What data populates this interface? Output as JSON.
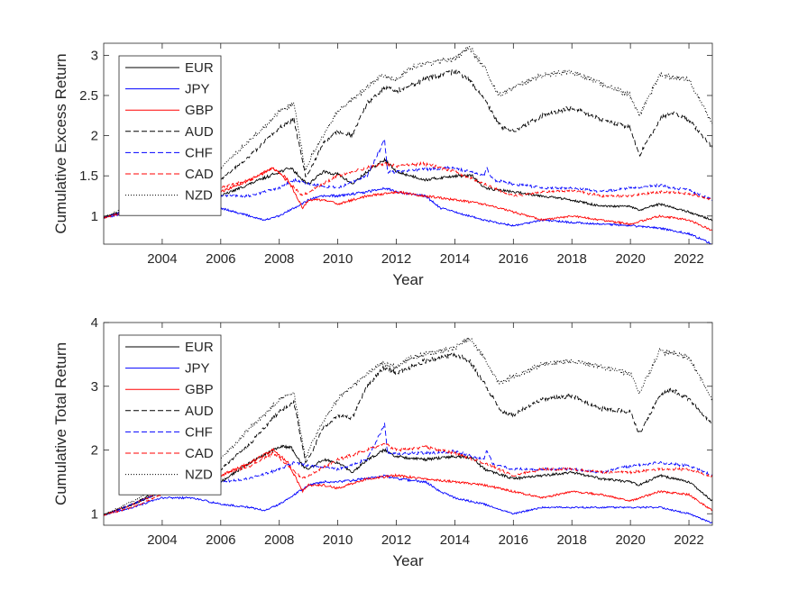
{
  "chart_data": [
    {
      "type": "line",
      "title": "",
      "xlabel": "Year",
      "ylabel": "Cumulative Excess Return",
      "xlim": [
        2002.0,
        2022.8
      ],
      "ylim": [
        0.65,
        3.15
      ],
      "xticks": [
        2004,
        2006,
        2008,
        2010,
        2012,
        2014,
        2016,
        2018,
        2020,
        2022
      ],
      "yticks": [
        1,
        1.5,
        2,
        2.5,
        3
      ],
      "ytick_labels": [
        "1",
        "1.5",
        "2",
        "2.5",
        "3"
      ],
      "legend_position": "top-left",
      "series": [
        {
          "name": "EUR",
          "color": "#000000",
          "dash": "solid",
          "x": [
            2002.0,
            2003.0,
            2004.0,
            2005.0,
            2006.0,
            2007.0,
            2008.0,
            2008.4,
            2008.8,
            2009.0,
            2009.5,
            2010.0,
            2010.5,
            2011.0,
            2011.6,
            2012.0,
            2013.0,
            2014.0,
            2014.6,
            2015.0,
            2016.0,
            2017.0,
            2018.0,
            2019.0,
            2020.0,
            2020.3,
            2021.0,
            2022.0,
            2022.8
          ],
          "y": [
            0.98,
            1.1,
            1.2,
            1.2,
            1.25,
            1.4,
            1.55,
            1.6,
            1.45,
            1.4,
            1.55,
            1.52,
            1.4,
            1.55,
            1.7,
            1.55,
            1.45,
            1.5,
            1.5,
            1.35,
            1.3,
            1.25,
            1.2,
            1.12,
            1.12,
            1.07,
            1.15,
            1.05,
            0.95
          ]
        },
        {
          "name": "JPY",
          "color": "#0000ff",
          "dash": "solid",
          "x": [
            2002.0,
            2003.0,
            2004.0,
            2005.0,
            2006.0,
            2007.0,
            2007.5,
            2008.0,
            2008.5,
            2009.0,
            2009.5,
            2010.0,
            2011.0,
            2011.6,
            2012.0,
            2013.0,
            2013.5,
            2014.0,
            2015.0,
            2016.0,
            2017.0,
            2018.0,
            2019.0,
            2020.0,
            2021.0,
            2022.0,
            2022.8
          ],
          "y": [
            0.98,
            1.05,
            1.15,
            1.15,
            1.1,
            1.0,
            0.95,
            1.0,
            1.1,
            1.2,
            1.25,
            1.25,
            1.3,
            1.35,
            1.3,
            1.25,
            1.1,
            1.05,
            0.95,
            0.88,
            0.95,
            0.92,
            0.9,
            0.88,
            0.85,
            0.78,
            0.65
          ]
        },
        {
          "name": "GBP",
          "color": "#ff0000",
          "dash": "solid",
          "x": [
            2002.0,
            2003.0,
            2004.0,
            2005.0,
            2006.0,
            2007.0,
            2007.8,
            2008.3,
            2008.8,
            2009.0,
            2009.5,
            2010.0,
            2011.0,
            2012.0,
            2013.0,
            2014.0,
            2015.0,
            2016.0,
            2017.0,
            2018.0,
            2019.0,
            2020.0,
            2021.0,
            2022.0,
            2022.8
          ],
          "y": [
            0.98,
            1.08,
            1.18,
            1.22,
            1.3,
            1.45,
            1.6,
            1.45,
            1.1,
            1.2,
            1.2,
            1.15,
            1.25,
            1.3,
            1.25,
            1.2,
            1.15,
            1.05,
            0.95,
            1.0,
            0.95,
            0.9,
            1.0,
            0.95,
            0.82
          ]
        },
        {
          "name": "AUD",
          "color": "#000000",
          "dash": "dash",
          "x": [
            2002.0,
            2003.0,
            2004.0,
            2005.0,
            2006.0,
            2007.0,
            2008.0,
            2008.5,
            2008.9,
            2009.1,
            2009.5,
            2010.0,
            2010.5,
            2011.0,
            2011.6,
            2012.0,
            2013.0,
            2014.0,
            2014.5,
            2015.0,
            2015.6,
            2016.0,
            2017.0,
            2018.0,
            2019.0,
            2020.0,
            2020.3,
            2021.0,
            2021.4,
            2022.0,
            2022.8
          ],
          "y": [
            0.98,
            1.1,
            1.25,
            1.4,
            1.45,
            1.75,
            2.1,
            2.2,
            1.5,
            1.6,
            1.9,
            2.05,
            2.0,
            2.4,
            2.6,
            2.55,
            2.7,
            2.8,
            2.7,
            2.45,
            2.1,
            2.05,
            2.25,
            2.35,
            2.2,
            2.1,
            1.75,
            2.2,
            2.3,
            2.2,
            1.85
          ]
        },
        {
          "name": "CHF",
          "color": "#0000ff",
          "dash": "dash",
          "x": [
            2002.0,
            2003.0,
            2004.0,
            2005.0,
            2006.0,
            2007.0,
            2008.0,
            2008.5,
            2009.0,
            2010.0,
            2011.0,
            2011.6,
            2011.7,
            2012.0,
            2013.0,
            2014.0,
            2015.0,
            2015.1,
            2015.3,
            2016.0,
            2017.0,
            2018.0,
            2019.0,
            2020.0,
            2021.0,
            2022.0,
            2022.8
          ],
          "y": [
            0.98,
            1.1,
            1.2,
            1.25,
            1.25,
            1.25,
            1.35,
            1.45,
            1.4,
            1.35,
            1.5,
            1.95,
            1.55,
            1.55,
            1.58,
            1.6,
            1.5,
            1.6,
            1.45,
            1.4,
            1.35,
            1.35,
            1.3,
            1.35,
            1.38,
            1.32,
            1.2
          ]
        },
        {
          "name": "CAD",
          "color": "#ff0000",
          "dash": "dash",
          "x": [
            2002.0,
            2003.0,
            2004.0,
            2005.0,
            2006.0,
            2007.0,
            2007.8,
            2008.8,
            2009.0,
            2010.0,
            2011.0,
            2011.6,
            2012.0,
            2013.0,
            2014.0,
            2015.0,
            2016.0,
            2017.0,
            2018.0,
            2019.0,
            2020.0,
            2021.0,
            2022.0,
            2022.8
          ],
          "y": [
            0.98,
            1.05,
            1.15,
            1.25,
            1.35,
            1.45,
            1.6,
            1.25,
            1.3,
            1.5,
            1.6,
            1.65,
            1.62,
            1.65,
            1.55,
            1.4,
            1.25,
            1.3,
            1.32,
            1.25,
            1.25,
            1.3,
            1.28,
            1.2
          ]
        },
        {
          "name": "NZD",
          "color": "#000000",
          "dash": "dot",
          "x": [
            2002.0,
            2003.0,
            2004.0,
            2005.0,
            2006.0,
            2007.0,
            2007.5,
            2008.0,
            2008.5,
            2008.9,
            2009.1,
            2009.5,
            2010.0,
            2011.0,
            2011.5,
            2012.0,
            2012.5,
            2013.0,
            2014.0,
            2014.5,
            2015.0,
            2015.5,
            2016.0,
            2017.0,
            2018.0,
            2019.0,
            2020.0,
            2020.3,
            2021.0,
            2022.0,
            2022.8
          ],
          "y": [
            0.98,
            1.15,
            1.3,
            1.45,
            1.6,
            1.95,
            2.1,
            2.3,
            2.4,
            1.55,
            1.75,
            2.0,
            2.3,
            2.6,
            2.75,
            2.7,
            2.85,
            2.9,
            2.95,
            3.1,
            2.85,
            2.5,
            2.6,
            2.75,
            2.8,
            2.65,
            2.5,
            2.25,
            2.75,
            2.7,
            2.15
          ]
        }
      ]
    },
    {
      "type": "line",
      "title": "",
      "xlabel": "Year",
      "ylabel": "Cumulative Total Return",
      "xlim": [
        2002.0,
        2022.8
      ],
      "ylim": [
        0.82,
        4.0
      ],
      "xticks": [
        2004,
        2006,
        2008,
        2010,
        2012,
        2014,
        2016,
        2018,
        2020,
        2022
      ],
      "yticks": [
        1,
        2,
        3,
        4
      ],
      "ytick_labels": [
        "1",
        "2",
        "3",
        "4"
      ],
      "legend_position": "top-left",
      "series": [
        {
          "name": "EUR",
          "color": "#000000",
          "dash": "solid",
          "x": [
            2002.0,
            2003.0,
            2004.0,
            2005.0,
            2006.0,
            2007.0,
            2008.0,
            2008.4,
            2008.8,
            2009.0,
            2009.5,
            2010.0,
            2010.5,
            2011.0,
            2011.6,
            2012.0,
            2013.0,
            2014.0,
            2014.6,
            2015.0,
            2016.0,
            2017.0,
            2018.0,
            2019.0,
            2020.0,
            2020.3,
            2021.0,
            2022.0,
            2022.8
          ],
          "y": [
            0.98,
            1.15,
            1.35,
            1.4,
            1.5,
            1.8,
            2.05,
            2.05,
            1.75,
            1.7,
            1.85,
            1.8,
            1.65,
            1.85,
            2.0,
            1.9,
            1.85,
            1.9,
            1.88,
            1.7,
            1.55,
            1.6,
            1.65,
            1.55,
            1.5,
            1.45,
            1.6,
            1.5,
            1.2
          ]
        },
        {
          "name": "JPY",
          "color": "#0000ff",
          "dash": "solid",
          "x": [
            2002.0,
            2003.0,
            2004.0,
            2005.0,
            2006.0,
            2007.0,
            2007.5,
            2008.0,
            2008.5,
            2009.0,
            2009.5,
            2010.0,
            2011.0,
            2011.6,
            2012.0,
            2013.0,
            2013.5,
            2014.0,
            2015.0,
            2016.0,
            2017.0,
            2018.0,
            2019.0,
            2020.0,
            2021.0,
            2022.0,
            2022.8
          ],
          "y": [
            0.98,
            1.1,
            1.25,
            1.25,
            1.15,
            1.1,
            1.05,
            1.15,
            1.3,
            1.45,
            1.5,
            1.5,
            1.55,
            1.6,
            1.55,
            1.5,
            1.35,
            1.25,
            1.15,
            1.0,
            1.1,
            1.1,
            1.1,
            1.1,
            1.1,
            1.0,
            0.85
          ]
        },
        {
          "name": "GBP",
          "color": "#ff0000",
          "dash": "solid",
          "x": [
            2002.0,
            2003.0,
            2004.0,
            2005.0,
            2006.0,
            2007.0,
            2007.8,
            2008.3,
            2008.8,
            2009.0,
            2009.5,
            2010.0,
            2011.0,
            2012.0,
            2013.0,
            2014.0,
            2015.0,
            2016.0,
            2017.0,
            2018.0,
            2019.0,
            2020.0,
            2021.0,
            2022.0,
            2022.8
          ],
          "y": [
            0.98,
            1.15,
            1.35,
            1.45,
            1.6,
            1.8,
            2.0,
            1.8,
            1.35,
            1.45,
            1.45,
            1.4,
            1.55,
            1.6,
            1.55,
            1.5,
            1.45,
            1.35,
            1.25,
            1.35,
            1.3,
            1.2,
            1.35,
            1.3,
            1.05
          ]
        },
        {
          "name": "AUD",
          "color": "#000000",
          "dash": "dash",
          "x": [
            2002.0,
            2003.0,
            2004.0,
            2005.0,
            2006.0,
            2007.0,
            2008.0,
            2008.5,
            2008.9,
            2009.1,
            2009.5,
            2010.0,
            2010.5,
            2011.0,
            2011.6,
            2012.0,
            2013.0,
            2014.0,
            2014.5,
            2015.0,
            2015.6,
            2016.0,
            2017.0,
            2018.0,
            2019.0,
            2020.0,
            2020.3,
            2021.0,
            2021.4,
            2022.0,
            2022.8
          ],
          "y": [
            0.98,
            1.15,
            1.4,
            1.6,
            1.7,
            2.1,
            2.6,
            2.75,
            1.8,
            1.95,
            2.35,
            2.55,
            2.5,
            3.0,
            3.3,
            3.2,
            3.4,
            3.5,
            3.4,
            3.05,
            2.6,
            2.55,
            2.8,
            2.85,
            2.65,
            2.6,
            2.25,
            2.85,
            2.95,
            2.8,
            2.4
          ]
        },
        {
          "name": "CHF",
          "color": "#0000ff",
          "dash": "dash",
          "x": [
            2002.0,
            2003.0,
            2004.0,
            2005.0,
            2006.0,
            2007.0,
            2008.0,
            2008.5,
            2009.0,
            2010.0,
            2011.0,
            2011.6,
            2011.7,
            2012.0,
            2013.0,
            2014.0,
            2015.0,
            2015.1,
            2015.3,
            2016.0,
            2017.0,
            2018.0,
            2019.0,
            2020.0,
            2021.0,
            2022.0,
            2022.8
          ],
          "y": [
            0.98,
            1.15,
            1.35,
            1.45,
            1.5,
            1.55,
            1.7,
            1.8,
            1.75,
            1.7,
            1.85,
            2.4,
            1.95,
            1.95,
            1.95,
            1.98,
            1.85,
            2.0,
            1.78,
            1.7,
            1.7,
            1.7,
            1.65,
            1.75,
            1.8,
            1.75,
            1.6
          ]
        },
        {
          "name": "CAD",
          "color": "#ff0000",
          "dash": "dash",
          "x": [
            2002.0,
            2003.0,
            2004.0,
            2005.0,
            2006.0,
            2007.0,
            2007.8,
            2008.8,
            2009.0,
            2010.0,
            2011.0,
            2011.6,
            2012.0,
            2013.0,
            2014.0,
            2015.0,
            2016.0,
            2017.0,
            2018.0,
            2019.0,
            2020.0,
            2021.0,
            2022.0,
            2022.8
          ],
          "y": [
            0.98,
            1.1,
            1.3,
            1.45,
            1.6,
            1.75,
            1.95,
            1.55,
            1.6,
            1.85,
            2.0,
            2.1,
            2.0,
            2.05,
            1.95,
            1.8,
            1.6,
            1.7,
            1.7,
            1.65,
            1.65,
            1.7,
            1.7,
            1.58
          ]
        },
        {
          "name": "NZD",
          "color": "#000000",
          "dash": "dot",
          "x": [
            2002.0,
            2003.0,
            2004.0,
            2005.0,
            2006.0,
            2007.0,
            2007.5,
            2008.0,
            2008.5,
            2008.9,
            2009.1,
            2009.5,
            2010.0,
            2011.0,
            2011.5,
            2012.0,
            2012.5,
            2013.0,
            2014.0,
            2014.5,
            2015.0,
            2015.5,
            2016.0,
            2017.0,
            2018.0,
            2019.0,
            2020.0,
            2020.3,
            2021.0,
            2022.0,
            2022.8
          ],
          "y": [
            0.98,
            1.2,
            1.45,
            1.65,
            1.85,
            2.35,
            2.55,
            2.8,
            2.9,
            1.85,
            2.1,
            2.45,
            2.8,
            3.2,
            3.35,
            3.3,
            3.45,
            3.5,
            3.6,
            3.75,
            3.45,
            3.05,
            3.15,
            3.35,
            3.4,
            3.3,
            3.2,
            2.9,
            3.55,
            3.45,
            2.8
          ]
        }
      ]
    }
  ]
}
